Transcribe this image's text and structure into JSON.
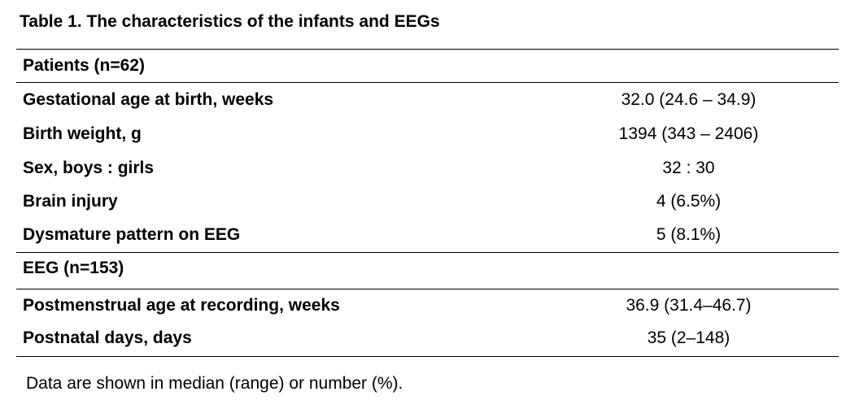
{
  "caption": "Table 1. The characteristics of the infants and EEGs",
  "sections": [
    {
      "header": "Patients (n=62)",
      "rows": [
        {
          "label": "Gestational age at birth, weeks",
          "value": "32.0 (24.6 – 34.9)"
        },
        {
          "label": "Birth weight, g",
          "value": "1394 (343 – 2406)"
        },
        {
          "label": "Sex, boys : girls",
          "value": "32 : 30"
        },
        {
          "label": "Brain injury",
          "value": "4 (6.5%)"
        },
        {
          "label": "Dysmature pattern on EEG",
          "value": "5 (8.1%)"
        }
      ]
    },
    {
      "header": "EEG (n=153)",
      "rows": [
        {
          "label": "Postmenstrual age at recording, weeks",
          "value": "36.9 (31.4–46.7)"
        },
        {
          "label": "Postnatal days, days",
          "value": "35 (2–148)"
        }
      ]
    }
  ],
  "footnote": "Data are shown in median (range) or number (%)."
}
